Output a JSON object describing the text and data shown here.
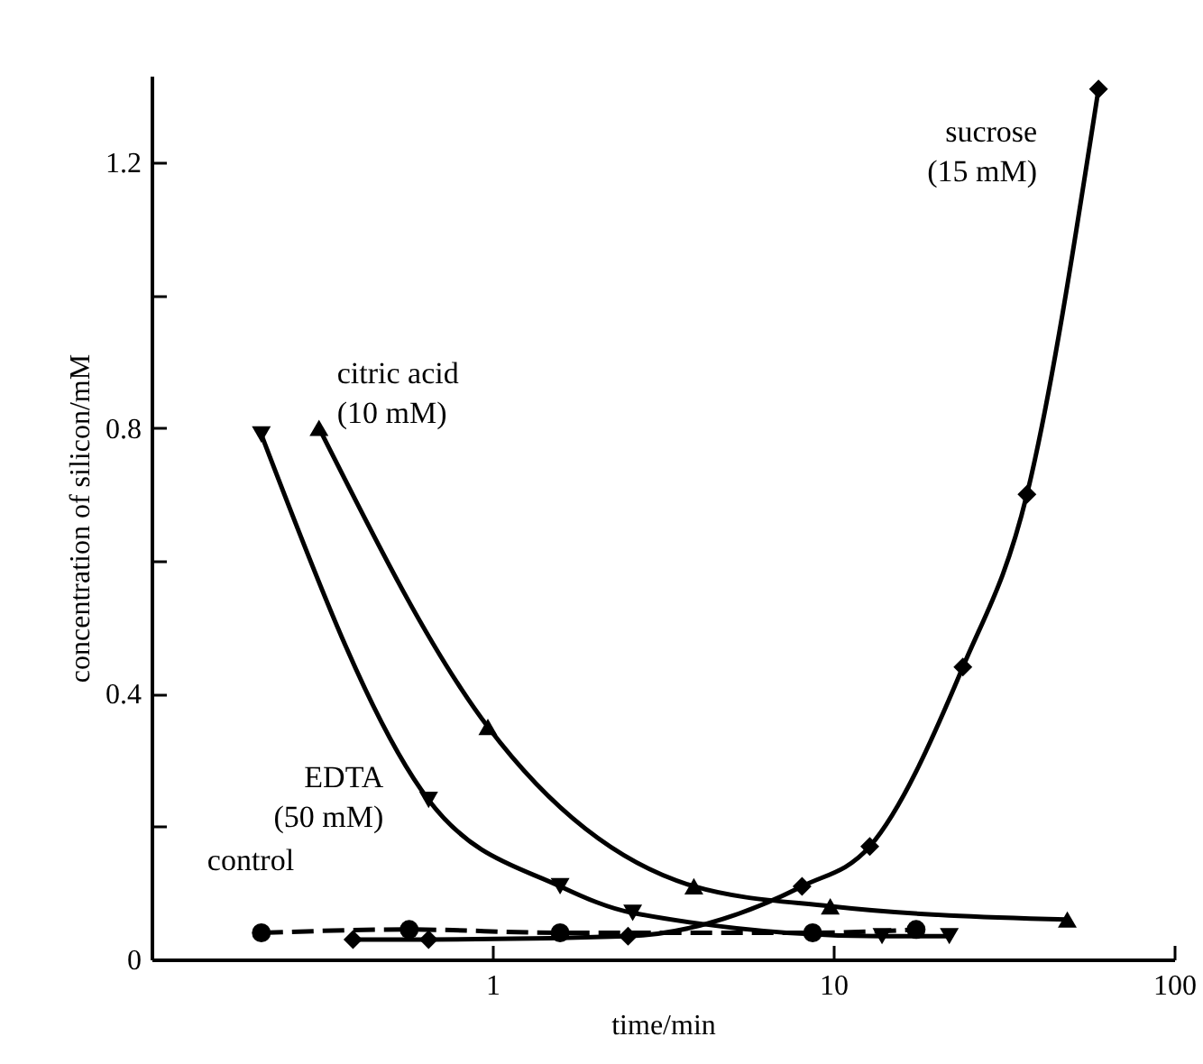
{
  "chart_data": {
    "type": "line",
    "xlabel": "time/min",
    "ylabel": "concentration of silicon/mM",
    "log": "x",
    "grid": false,
    "xlim": [
      0.1,
      100
    ],
    "xticks": [
      1,
      10,
      100
    ],
    "ylim": [
      0,
      1.33
    ],
    "yticks": [
      0,
      {
        "value": 0.2,
        "label": null
      },
      0.4,
      {
        "value": 0.6,
        "label": null
      },
      0.8,
      {
        "value": 1.0,
        "label": null
      },
      1.2
    ],
    "series": [
      {
        "name": "control",
        "color": "#000000",
        "marker": "circle",
        "line_style": "dashed",
        "x": [
          0.21,
          0.57,
          1.58,
          8.7,
          17.5
        ],
        "values": [
          0.04,
          0.045,
          0.04,
          0.04,
          0.045
        ]
      },
      {
        "name": "EDTA (50 mM)",
        "color": "#000000",
        "marker": "triangle-down",
        "line_style": "solid",
        "x": [
          0.21,
          0.65,
          1.58,
          2.58,
          13.9,
          21.9
        ],
        "values": [
          0.79,
          0.24,
          0.11,
          0.07,
          0.035,
          0.035
        ]
      },
      {
        "name": "citric acid (10 mM)",
        "color": "#000000",
        "marker": "triangle-up",
        "line_style": "solid",
        "x": [
          0.31,
          0.97,
          3.9,
          9.8,
          48.6
        ],
        "values": [
          0.8,
          0.35,
          0.11,
          0.08,
          0.06
        ]
      },
      {
        "name": "sucrose (15 mM)",
        "color": "#000000",
        "marker": "diamond",
        "line_style": "solid",
        "x": [
          0.39,
          0.65,
          2.5,
          8.1,
          12.8,
          24,
          37,
          60
        ],
        "values": [
          0.03,
          0.03,
          0.035,
          0.11,
          0.17,
          0.44,
          0.7,
          1.31
        ]
      }
    ]
  }
}
